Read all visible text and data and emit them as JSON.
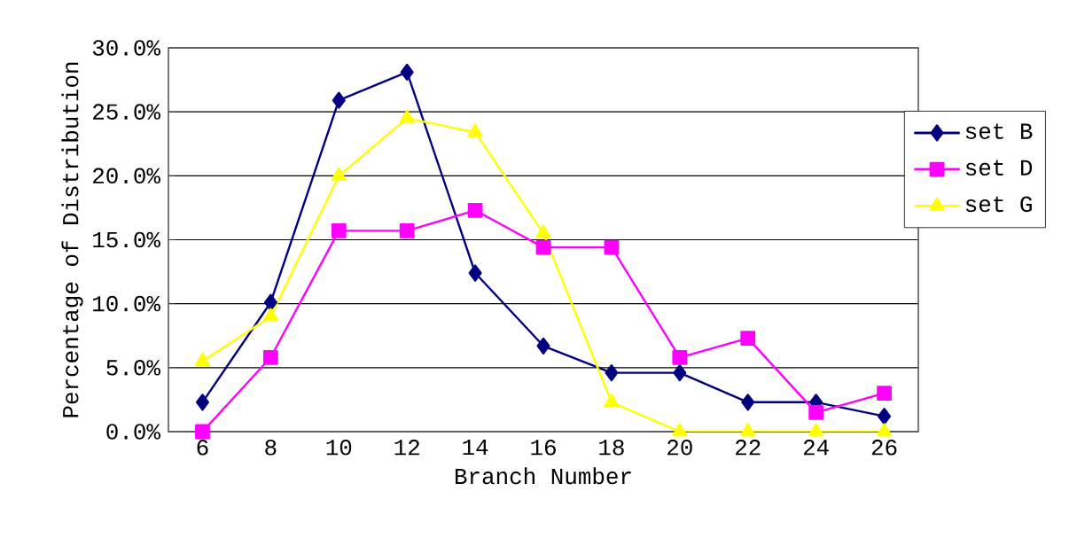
{
  "chart_data": {
    "type": "line",
    "xlabel": "Branch Number",
    "ylabel": "Percentage of Distribution",
    "categories": [
      "6",
      "8",
      "10",
      "12",
      "14",
      "16",
      "18",
      "20",
      "22",
      "24",
      "26"
    ],
    "series": [
      {
        "name": "set B",
        "color": "#000080",
        "marker": "diamond",
        "values": [
          2.3,
          10.1,
          25.9,
          28.1,
          12.4,
          6.7,
          4.6,
          4.6,
          2.3,
          2.3,
          1.2
        ]
      },
      {
        "name": "set D",
        "color": "#ff00ff",
        "marker": "square",
        "values": [
          0,
          5.8,
          15.7,
          15.7,
          17.3,
          14.4,
          14.4,
          5.8,
          7.3,
          1.5,
          3.0
        ]
      },
      {
        "name": "set G",
        "color": "#ffff00",
        "marker": "triangle",
        "values": [
          5.5,
          9.0,
          20.0,
          24.5,
          23.4,
          15.5,
          2.3,
          0,
          0,
          0,
          0
        ]
      }
    ],
    "ylim": [
      0,
      30
    ],
    "yticks": [
      {
        "value": 0,
        "label": "0.0%"
      },
      {
        "value": 5,
        "label": "5.0%"
      },
      {
        "value": 10,
        "label": "10.0%"
      },
      {
        "value": 15,
        "label": "15.0%"
      },
      {
        "value": 20,
        "label": "20.0%"
      },
      {
        "value": 25,
        "label": "25.0%"
      },
      {
        "value": 30,
        "label": "30.0%"
      }
    ],
    "grid": "y",
    "legend": "right",
    "line_style": "solid"
  }
}
